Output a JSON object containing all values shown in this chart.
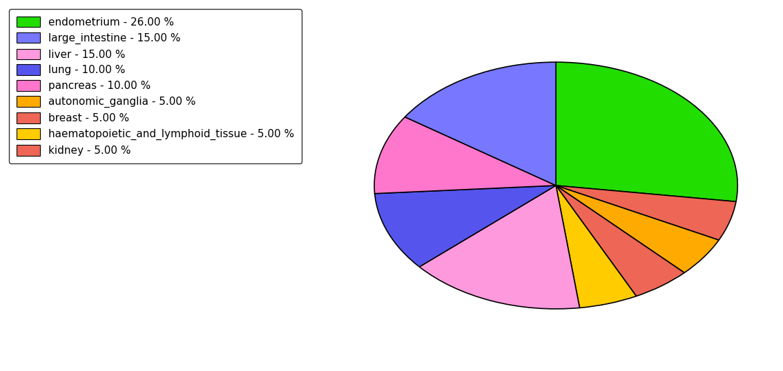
{
  "labels": [
    "endometrium",
    "breast",
    "autonomic_ganglia",
    "kidney",
    "haematopoietic_and_lymphoid_tissue",
    "liver",
    "lung",
    "pancreas",
    "large_intestine"
  ],
  "values": [
    26,
    5,
    5,
    5,
    5,
    15,
    10,
    10,
    15
  ],
  "colors": [
    "#22dd00",
    "#ee6655",
    "#ffaa00",
    "#ee6655",
    "#ffcc00",
    "#ff99dd",
    "#5555ee",
    "#ff77cc",
    "#7777ff"
  ],
  "legend_labels": [
    "endometrium - 26.00 %",
    "large_intestine - 15.00 %",
    "liver - 15.00 %",
    "lung - 10.00 %",
    "pancreas - 10.00 %",
    "autonomic_ganglia - 5.00 %",
    "breast - 5.00 %",
    "haematopoietic_and_lymphoid_tissue - 5.00 %",
    "kidney - 5.00 %"
  ],
  "legend_colors": [
    "#22dd00",
    "#7777ff",
    "#ff99dd",
    "#5555ee",
    "#ff77cc",
    "#ffaa00",
    "#ee6655",
    "#ffcc00",
    "#ee6655"
  ],
  "startangle": 90,
  "aspect_ratio": 0.68,
  "background_color": "#ffffff",
  "figsize": [
    11.34,
    5.38
  ],
  "dpi": 100
}
